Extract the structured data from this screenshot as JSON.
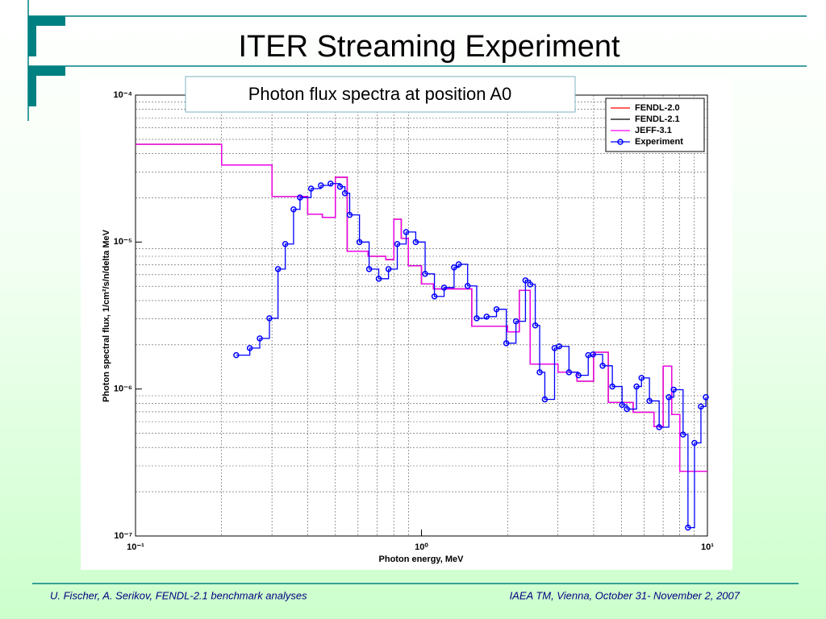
{
  "slide": {
    "title": "ITER Streaming Experiment",
    "footer_left": "U. Fischer, A. Serikov, FENDL-2.1 benchmark analyses",
    "footer_right": "IAEA TM, Vienna, October 31- November 2, 2007"
  },
  "chart_data": {
    "type": "line",
    "step": "post",
    "title": "Photon flux spectra at position A0",
    "xlabel": "Photon energy, MeV",
    "ylabel": "Photon spectral flux, 1/cm²/s/n/delta MeV",
    "xlog": true,
    "ylog": true,
    "grid": true,
    "legend": "upper right",
    "xlim": [
      0.1,
      10
    ],
    "ylim": [
      1e-07,
      0.0001
    ],
    "xticks": [
      {
        "value": 0.1,
        "label": "10⁻¹"
      },
      {
        "value": 1,
        "label": "10⁰"
      },
      {
        "value": 10,
        "label": "10¹"
      }
    ],
    "yticks": [
      {
        "value": 1e-07,
        "label": "10⁻⁷"
      },
      {
        "value": 1e-06,
        "label": "10⁻⁶"
      },
      {
        "value": 1e-05,
        "label": "10⁻⁵"
      },
      {
        "value": 0.0001,
        "label": "10⁻⁴"
      }
    ],
    "xminorticks": [
      0.2,
      0.3,
      0.4,
      0.5,
      0.6,
      0.7,
      0.8,
      0.9,
      2,
      3,
      4,
      5,
      6,
      7,
      8,
      9
    ],
    "yminorticks": [
      2e-07,
      3e-07,
      4e-07,
      5e-07,
      6e-07,
      7e-07,
      8e-07,
      9e-07,
      2e-06,
      3e-06,
      4e-06,
      5e-06,
      6e-06,
      7e-06,
      8e-06,
      9e-06,
      2e-05,
      3e-05,
      4e-05,
      5e-05,
      6e-05,
      7e-05,
      8e-05,
      9e-05
    ],
    "series": [
      {
        "name": "FENDL-2.0",
        "color": "#ff0000",
        "marker": false,
        "x": [
          0.1,
          0.2,
          0.3,
          0.4,
          0.45,
          0.5,
          0.55,
          0.65,
          0.75,
          0.8,
          0.85,
          0.9,
          1.0,
          1.1,
          1.5,
          2.0,
          2.2,
          2.4,
          3.0,
          3.5,
          4.0,
          4.5,
          5.5,
          6.5,
          7.0,
          7.5,
          8.0,
          10
        ],
        "values": [
          4.63e-05,
          3.34e-05,
          2.04e-05,
          1.55e-05,
          1.47e-05,
          2.76e-05,
          8.65e-06,
          8e-06,
          7.6e-06,
          1.43e-05,
          1.06e-05,
          6.9e-06,
          5.2e-06,
          4.8e-06,
          2.67e-06,
          2.45e-06,
          4.7e-06,
          1.48e-06,
          1.3e-06,
          1.13e-06,
          1.78e-06,
          8.1e-07,
          6.95e-07,
          5.55e-07,
          1.43e-06,
          6.7e-07,
          2.75e-07,
          2.75e-07
        ]
      },
      {
        "name": "FENDL-2.1",
        "color": "#000000",
        "marker": false,
        "x": [
          0.1,
          0.2,
          0.3,
          0.4,
          0.45,
          0.5,
          0.55,
          0.65,
          0.75,
          0.8,
          0.85,
          0.9,
          1.0,
          1.1,
          1.5,
          2.0,
          2.2,
          2.4,
          3.0,
          3.5,
          4.0,
          4.5,
          5.5,
          6.5,
          7.0,
          7.5,
          8.0,
          10
        ],
        "values": [
          4.63e-05,
          3.34e-05,
          2.04e-05,
          1.55e-05,
          1.47e-05,
          2.76e-05,
          8.65e-06,
          8e-06,
          7.6e-06,
          1.43e-05,
          1.06e-05,
          6.9e-06,
          5.2e-06,
          4.8e-06,
          2.67e-06,
          2.45e-06,
          4.7e-06,
          1.48e-06,
          1.3e-06,
          1.13e-06,
          1.78e-06,
          8.1e-07,
          6.95e-07,
          5.55e-07,
          1.43e-06,
          6.7e-07,
          2.75e-07,
          2.75e-07
        ]
      },
      {
        "name": "JEFF-3.1",
        "color": "#ff00ff",
        "marker": false,
        "x": [
          0.1,
          0.2,
          0.3,
          0.4,
          0.45,
          0.5,
          0.55,
          0.65,
          0.75,
          0.8,
          0.85,
          0.9,
          1.0,
          1.1,
          1.5,
          2.0,
          2.2,
          2.4,
          3.0,
          3.5,
          4.0,
          4.5,
          5.5,
          6.5,
          7.0,
          7.5,
          8.0,
          10
        ],
        "values": [
          4.63e-05,
          3.34e-05,
          2.04e-05,
          1.55e-05,
          1.47e-05,
          2.76e-05,
          8.65e-06,
          8e-06,
          7.6e-06,
          1.43e-05,
          1.06e-05,
          6.9e-06,
          5.2e-06,
          4.8e-06,
          2.67e-06,
          2.45e-06,
          4.7e-06,
          1.48e-06,
          1.3e-06,
          1.13e-06,
          1.78e-06,
          8.1e-07,
          6.95e-07,
          5.55e-07,
          1.43e-06,
          6.7e-07,
          2.75e-07,
          2.75e-07
        ]
      },
      {
        "name": "Experiment",
        "color": "#0000ff",
        "marker": true,
        "x": [
          0.225,
          0.251,
          0.272,
          0.294,
          0.315,
          0.334,
          0.357,
          0.376,
          0.411,
          0.445,
          0.481,
          0.519,
          0.54,
          0.561,
          0.607,
          0.656,
          0.709,
          0.767,
          0.823,
          0.884,
          0.955,
          1.03,
          1.11,
          1.2,
          1.3,
          1.35,
          1.45,
          1.56,
          1.69,
          1.83,
          1.98,
          2.14,
          2.31,
          2.4,
          2.5,
          2.59,
          2.7,
          2.92,
          3.03,
          3.28,
          3.54,
          3.83,
          3.98,
          4.3,
          4.65,
          5.03,
          5.23,
          5.65,
          5.88,
          6.27,
          6.78,
          7.33,
          7.62,
          8.22,
          8.55,
          9.01,
          9.49,
          9.87
        ],
        "values": [
          1.7e-06,
          1.9e-06,
          2.21e-06,
          3.03e-06,
          6.55e-06,
          9.7e-06,
          1.67e-05,
          2.01e-05,
          2.31e-05,
          2.43e-05,
          2.5e-05,
          2.38e-05,
          2.15e-05,
          1.53e-05,
          1e-05,
          6.55e-06,
          5.63e-06,
          6.55e-06,
          9.7e-06,
          1.17e-05,
          1e-05,
          6.08e-06,
          4.27e-06,
          4.9e-06,
          6.72e-06,
          7.06e-06,
          5.03e-06,
          3.03e-06,
          3.11e-06,
          3.49e-06,
          2.05e-06,
          2.89e-06,
          5.49e-06,
          5.15e-06,
          2.71e-06,
          1.3e-06,
          8.5e-07,
          1.9e-06,
          1.95e-06,
          1.3e-06,
          1.24e-06,
          1.7e-06,
          1.72e-06,
          1.44e-06,
          1.04e-06,
          7.8e-07,
          7.3e-07,
          1.04e-06,
          1.19e-06,
          8.3e-07,
          5.5e-07,
          8.8e-07,
          9.9e-07,
          4.9e-07,
          1.14e-07,
          4.3e-07,
          7.6e-07,
          8.8e-07
        ]
      }
    ]
  }
}
